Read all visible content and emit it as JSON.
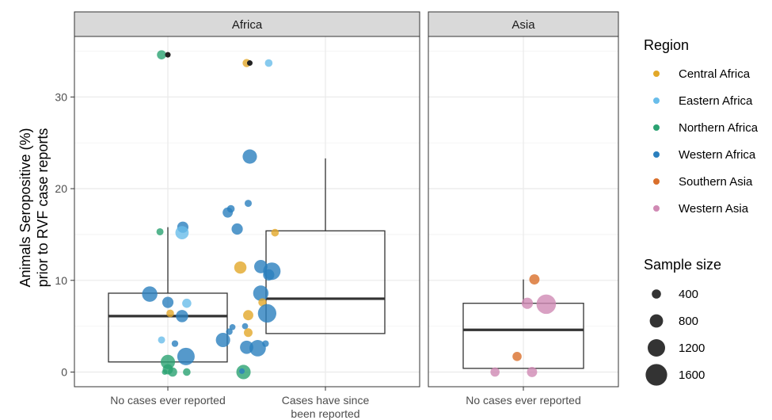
{
  "chart_data": {
    "type": "scatter",
    "overlay": "boxplot",
    "ylabel_line1": "Animals Seropositive (%)",
    "ylabel_line2": "prior to RVF case reports",
    "ylim": [
      -1.6,
      36.6
    ],
    "yticks": [
      0,
      10,
      20,
      30
    ],
    "grid": true,
    "legend_position": "right",
    "facets": [
      {
        "name": "Africa",
        "categories": [
          {
            "label_lines": [
              "No cases ever reported"
            ]
          },
          {
            "label_lines": [
              "Cases have since",
              "been reported"
            ]
          }
        ]
      },
      {
        "name": "Asia",
        "categories": [
          {
            "label_lines": [
              "No cases ever reported"
            ]
          }
        ]
      }
    ],
    "boxes": [
      {
        "facet": 0,
        "cat": 0,
        "q1": 1.1,
        "median": 6.1,
        "q3": 8.6,
        "whisker_low": 1.1,
        "whisker_high": 15.8
      },
      {
        "facet": 0,
        "cat": 1,
        "q1": 4.2,
        "median": 8.0,
        "q3": 15.4,
        "whisker_low": 4.2,
        "whisker_high": 23.3
      },
      {
        "facet": 1,
        "cat": 0,
        "q1": 0.4,
        "median": 4.6,
        "q3": 7.5,
        "whisker_low": 0.4,
        "whisker_high": 10.1
      }
    ],
    "regions": [
      {
        "name": "Central Africa",
        "color": "#E2A829"
      },
      {
        "name": "Eastern Africa",
        "color": "#69BDEA"
      },
      {
        "name": "Northern Africa",
        "color": "#2BA272"
      },
      {
        "name": "Western Africa",
        "color": "#2A7FBE"
      },
      {
        "name": "Southern Asia",
        "color": "#D96F2B"
      },
      {
        "name": "Western Asia",
        "color": "#D08AB4"
      }
    ],
    "outlier_color": "#222222",
    "size_legend": {
      "title": "Sample size",
      "values": [
        400,
        800,
        1200,
        1600
      ]
    },
    "points": [
      {
        "facet": 0,
        "cat": 0,
        "dx": -0.08,
        "y": 34.6,
        "region": "Northern Africa",
        "n": 400
      },
      {
        "facet": 0,
        "cat": 0,
        "dx": 0.0,
        "y": 34.6,
        "region": "outlier",
        "n": 20
      },
      {
        "facet": 0,
        "cat": 0,
        "dx": -0.1,
        "y": 15.3,
        "region": "Northern Africa",
        "n": 200
      },
      {
        "facet": 0,
        "cat": 0,
        "dx": 0.19,
        "y": 15.8,
        "region": "Western Africa",
        "n": 600
      },
      {
        "facet": 0,
        "cat": 0,
        "dx": 0.18,
        "y": 15.2,
        "region": "Eastern Africa",
        "n": 800
      },
      {
        "facet": 0,
        "cat": 0,
        "dx": -0.23,
        "y": 8.5,
        "region": "Western Africa",
        "n": 1000
      },
      {
        "facet": 0,
        "cat": 0,
        "dx": 0.0,
        "y": 7.6,
        "region": "Western Africa",
        "n": 600
      },
      {
        "facet": 0,
        "cat": 0,
        "dx": 0.24,
        "y": 7.5,
        "region": "Eastern Africa",
        "n": 400
      },
      {
        "facet": 0,
        "cat": 0,
        "dx": 0.03,
        "y": 6.4,
        "region": "Central Africa",
        "n": 250
      },
      {
        "facet": 0,
        "cat": 0,
        "dx": 0.18,
        "y": 6.1,
        "region": "Western Africa",
        "n": 700
      },
      {
        "facet": 0,
        "cat": 0,
        "dx": -0.08,
        "y": 3.5,
        "region": "Eastern Africa",
        "n": 200
      },
      {
        "facet": 0,
        "cat": 0,
        "dx": 0.09,
        "y": 3.1,
        "region": "Western Africa",
        "n": 150
      },
      {
        "facet": 0,
        "cat": 0,
        "dx": 0.23,
        "y": 1.7,
        "region": "Western Africa",
        "n": 1200
      },
      {
        "facet": 0,
        "cat": 0,
        "dx": 0.0,
        "y": 1.1,
        "region": "Northern Africa",
        "n": 900
      },
      {
        "facet": 0,
        "cat": 0,
        "dx": 0.0,
        "y": 0.3,
        "region": "Northern Africa",
        "n": 500
      },
      {
        "facet": 0,
        "cat": 0,
        "dx": 0.06,
        "y": 0.0,
        "region": "Northern Africa",
        "n": 400
      },
      {
        "facet": 0,
        "cat": 0,
        "dx": -0.04,
        "y": 0.0,
        "region": "Northern Africa",
        "n": 50
      },
      {
        "facet": 0,
        "cat": 0,
        "dx": 0.24,
        "y": 0.0,
        "region": "Northern Africa",
        "n": 250
      },
      {
        "facet": 1,
        "cat": 0,
        "dx": -0.5,
        "y": 33.7,
        "region": "Central Africa",
        "n": 300
      },
      {
        "facet": 1,
        "cat": 0,
        "dx": -0.48,
        "y": 33.7,
        "region": "outlier",
        "n": 200
      },
      {
        "facet": 1,
        "cat": 0,
        "dx": -0.36,
        "y": 33.7,
        "region": "Eastern Africa",
        "n": 250
      },
      {
        "facet": 1,
        "cat": 0,
        "dx": -0.48,
        "y": 23.5,
        "region": "Western Africa",
        "n": 900
      },
      {
        "facet": 1,
        "cat": 0,
        "dx": -0.6,
        "y": 17.8,
        "region": "Western Africa",
        "n": 250
      },
      {
        "facet": 1,
        "cat": 0,
        "dx": -0.62,
        "y": 17.4,
        "region": "Western Africa",
        "n": 500
      },
      {
        "facet": 1,
        "cat": 0,
        "dx": -0.49,
        "y": 18.4,
        "region": "Western Africa",
        "n": 200
      },
      {
        "facet": 1,
        "cat": 0,
        "dx": -0.56,
        "y": 15.6,
        "region": "Western Africa",
        "n": 600
      },
      {
        "facet": 1,
        "cat": 0,
        "dx": -0.32,
        "y": 15.2,
        "region": "Central Africa",
        "n": 250
      },
      {
        "facet": 1,
        "cat": 0,
        "dx": -0.54,
        "y": 11.4,
        "region": "Central Africa",
        "n": 700
      },
      {
        "facet": 1,
        "cat": 0,
        "dx": -0.41,
        "y": 11.5,
        "region": "Western Africa",
        "n": 800
      },
      {
        "facet": 1,
        "cat": 0,
        "dx": -0.34,
        "y": 11.0,
        "region": "Western Africa",
        "n": 1200
      },
      {
        "facet": 1,
        "cat": 0,
        "dx": -0.36,
        "y": 10.6,
        "region": "Western Africa",
        "n": 600
      },
      {
        "facet": 1,
        "cat": 0,
        "dx": -0.41,
        "y": 8.6,
        "region": "Western Africa",
        "n": 1000
      },
      {
        "facet": 1,
        "cat": 0,
        "dx": -0.4,
        "y": 7.6,
        "region": "Central Africa",
        "n": 300
      },
      {
        "facet": 1,
        "cat": 0,
        "dx": -0.37,
        "y": 6.4,
        "region": "Western Africa",
        "n": 1300
      },
      {
        "facet": 1,
        "cat": 0,
        "dx": -0.49,
        "y": 6.2,
        "region": "Central Africa",
        "n": 500
      },
      {
        "facet": 1,
        "cat": 0,
        "dx": -0.51,
        "y": 5.0,
        "region": "Western Africa",
        "n": 100
      },
      {
        "facet": 1,
        "cat": 0,
        "dx": -0.59,
        "y": 4.9,
        "region": "Western Africa",
        "n": 100
      },
      {
        "facet": 1,
        "cat": 0,
        "dx": -0.61,
        "y": 4.4,
        "region": "Western Africa",
        "n": 150
      },
      {
        "facet": 1,
        "cat": 0,
        "dx": -0.49,
        "y": 4.3,
        "region": "Central Africa",
        "n": 350
      },
      {
        "facet": 1,
        "cat": 0,
        "dx": -0.65,
        "y": 3.5,
        "region": "Western Africa",
        "n": 900
      },
      {
        "facet": 1,
        "cat": 0,
        "dx": -0.5,
        "y": 2.7,
        "region": "Western Africa",
        "n": 800
      },
      {
        "facet": 1,
        "cat": 0,
        "dx": -0.43,
        "y": 2.6,
        "region": "Western Africa",
        "n": 1100
      },
      {
        "facet": 1,
        "cat": 0,
        "dx": -0.38,
        "y": 3.1,
        "region": "Western Africa",
        "n": 150
      },
      {
        "facet": 1,
        "cat": 0,
        "dx": -0.52,
        "y": 0.0,
        "region": "Northern Africa",
        "n": 900
      },
      {
        "facet": 1,
        "cat": 0,
        "dx": -0.53,
        "y": 0.1,
        "region": "Western Africa",
        "n": 50
      },
      {
        "facet": 2,
        "cat": 0,
        "dx": 0.14,
        "y": 10.1,
        "region": "Southern Asia",
        "n": 500
      },
      {
        "facet": 2,
        "cat": 0,
        "dx": 0.05,
        "y": 7.5,
        "region": "Western Asia",
        "n": 600
      },
      {
        "facet": 2,
        "cat": 0,
        "dx": 0.29,
        "y": 7.4,
        "region": "Western Asia",
        "n": 1400
      },
      {
        "facet": 2,
        "cat": 0,
        "dx": -0.08,
        "y": 1.7,
        "region": "Southern Asia",
        "n": 400
      },
      {
        "facet": 2,
        "cat": 0,
        "dx": -0.36,
        "y": 0.0,
        "region": "Western Asia",
        "n": 400
      },
      {
        "facet": 2,
        "cat": 0,
        "dx": 0.11,
        "y": 0.0,
        "region": "Western Asia",
        "n": 500
      }
    ]
  }
}
